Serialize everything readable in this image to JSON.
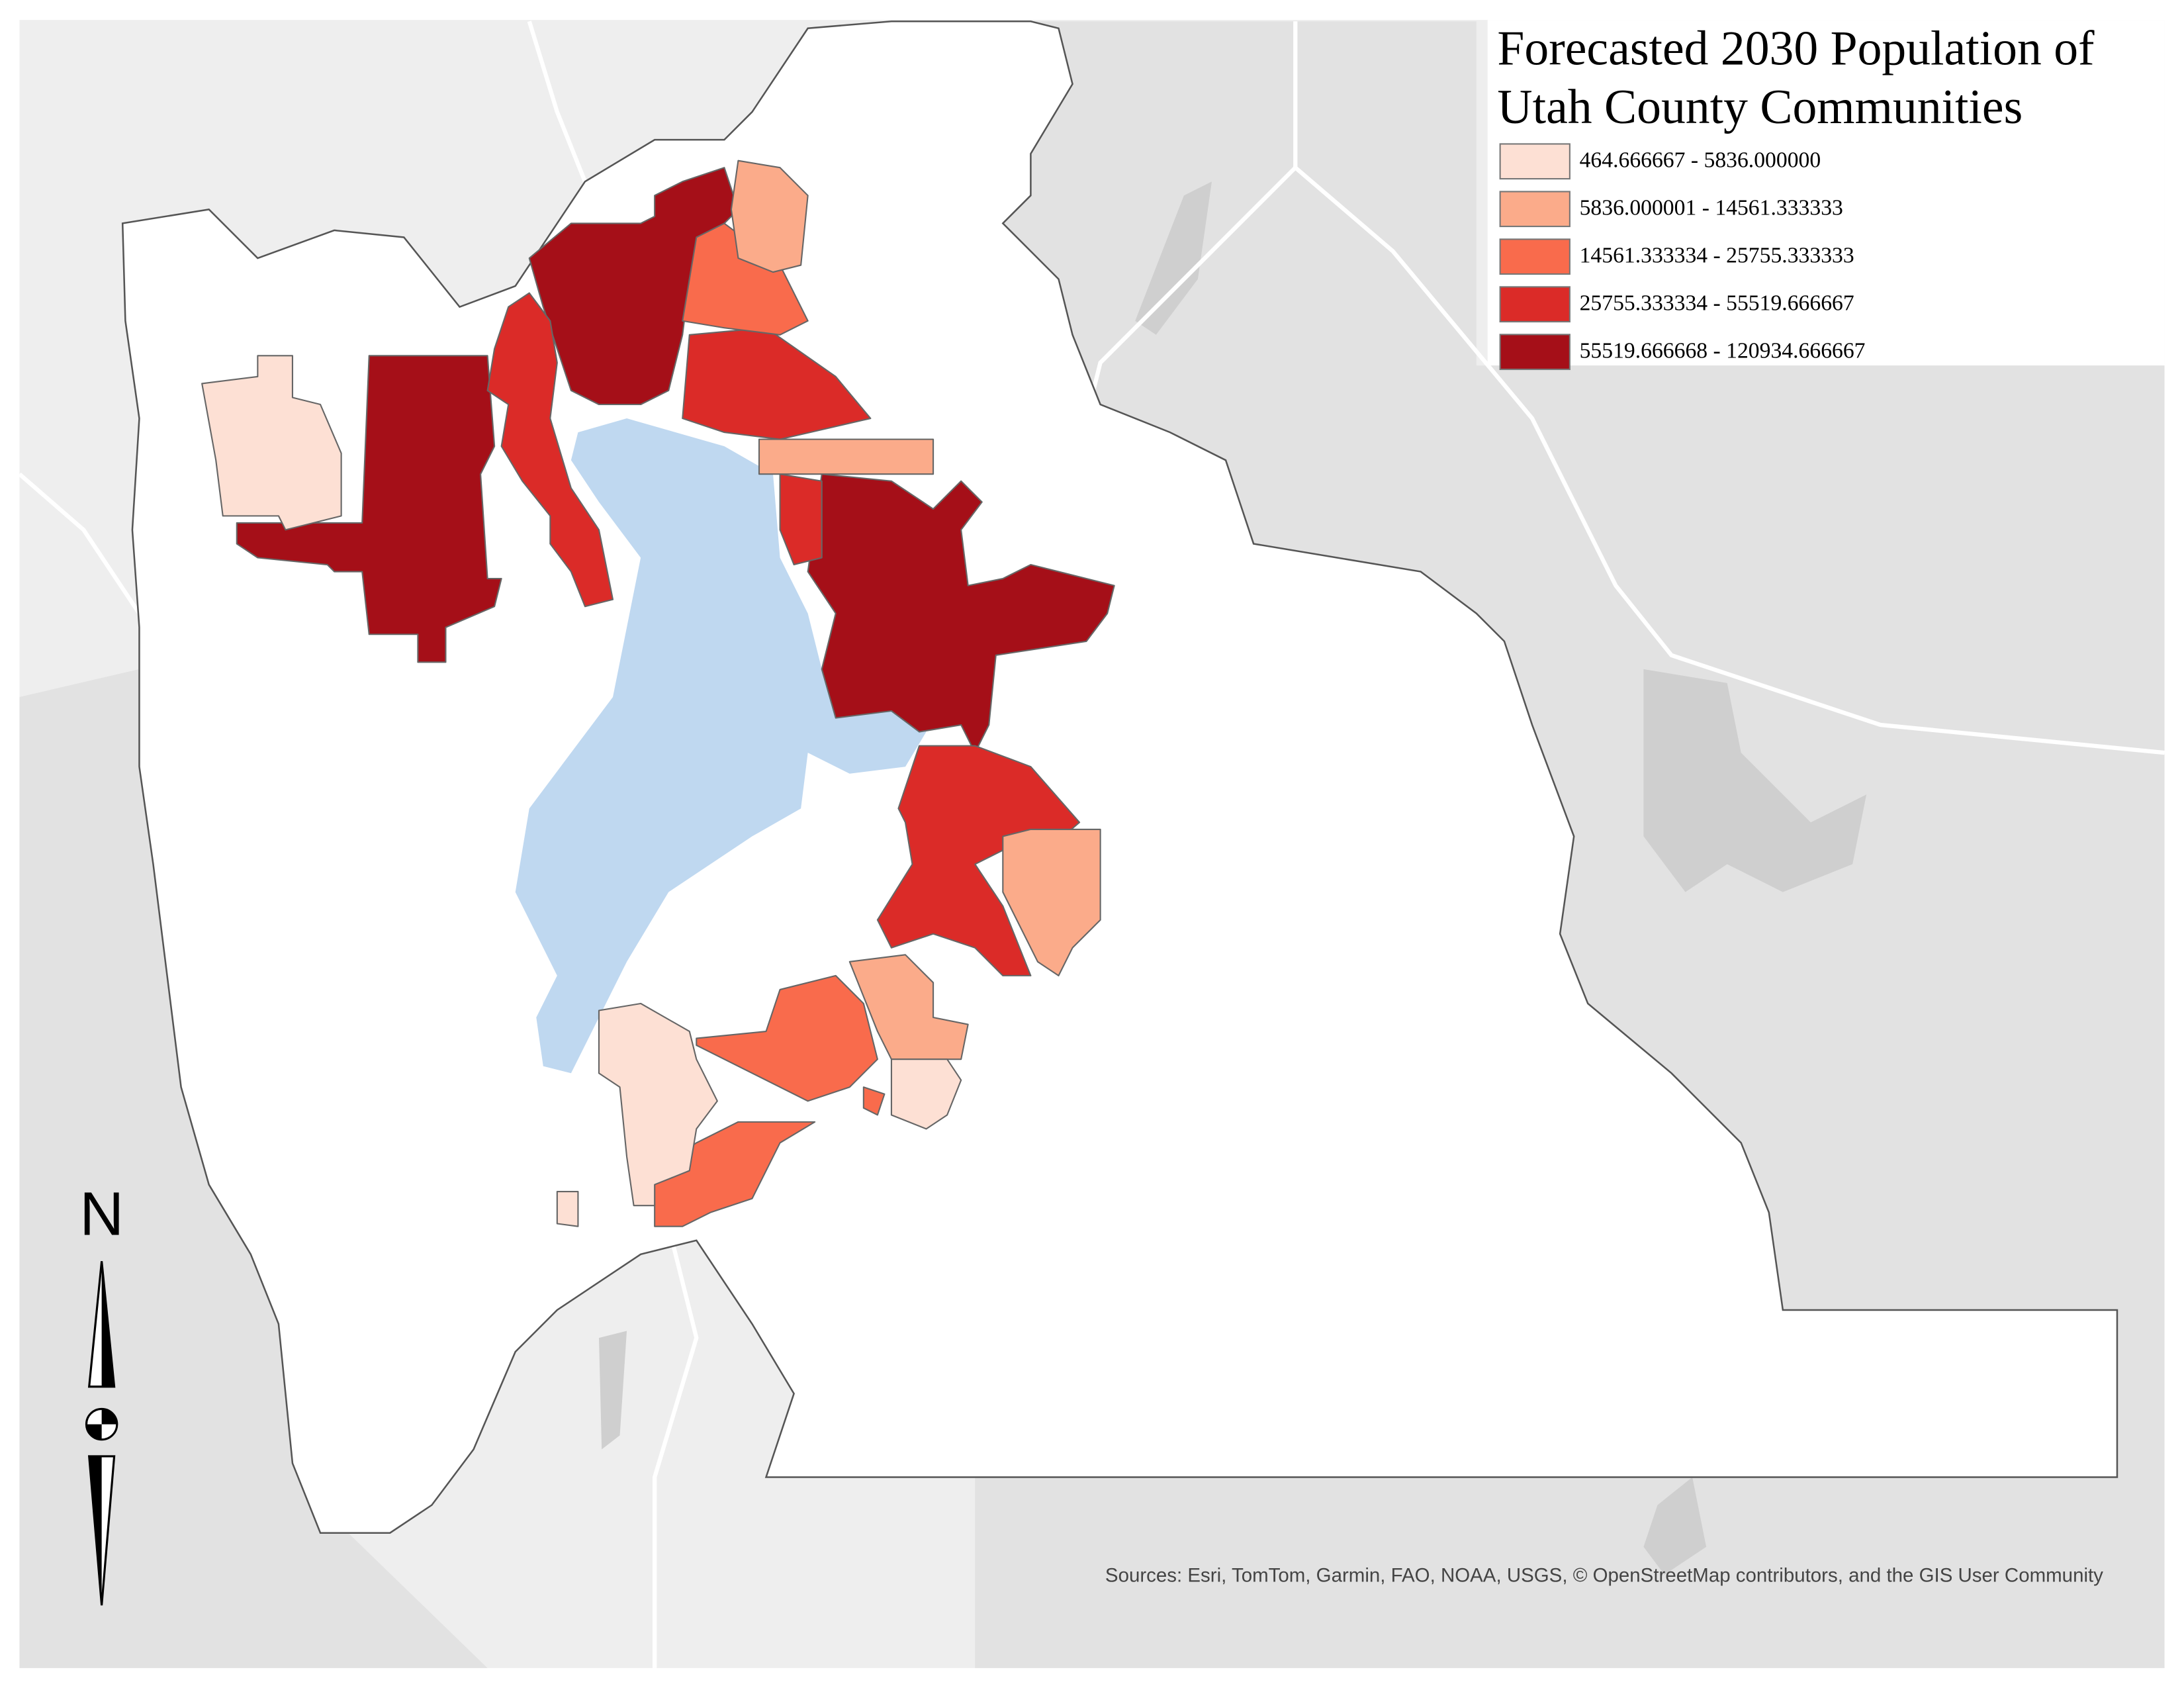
{
  "title": [
    "Forecasted 2030 Population of",
    "Utah County Communities"
  ],
  "legend": {
    "items": [
      {
        "label": "464.666667 - 5836.000000",
        "color": "#fde0d4"
      },
      {
        "label": "5836.000001 - 14561.333333",
        "color": "#fbab8a"
      },
      {
        "label": "14561.333334 - 25755.333333",
        "color": "#f96b4c"
      },
      {
        "label": "25755.333334 - 55519.666667",
        "color": "#db2b28"
      },
      {
        "label": "55519.666668 - 120934.666667",
        "color": "#a50f18"
      }
    ]
  },
  "north_arrow": {
    "label": "N"
  },
  "attribution": "Sources: Esri, TomTom, Garmin, FAO, NOAA, USGS, © OpenStreetMap contributors, and the GIS User Community"
}
